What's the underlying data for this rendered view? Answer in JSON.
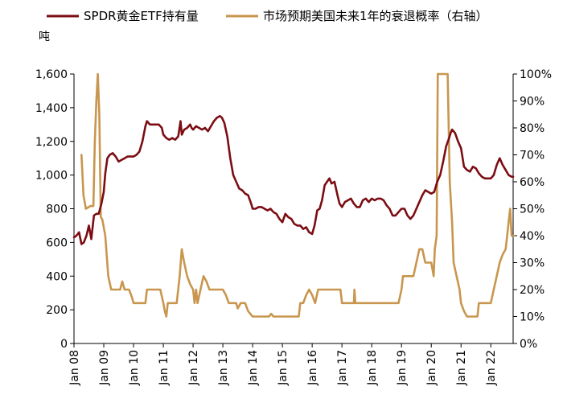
{
  "chart_data": {
    "type": "line",
    "left_unit": "吨",
    "legend": [
      {
        "name": "SPDR黄金ETF持有量",
        "color": "#7B0D13"
      },
      {
        "name": "市场预期美国未来1年的衰退概率（右轴）",
        "color": "#C8964E"
      }
    ],
    "x_ticks": [
      "Jan 08",
      "Jan 09",
      "Jan 10",
      "Jan 11",
      "Jan 12",
      "Jan 13",
      "Jan 14",
      "Jan 15",
      "Jan 16",
      "Jan 17",
      "Jan 18",
      "Jan 19",
      "Jan 20",
      "Jan 21",
      "Jan 22"
    ],
    "y_left": {
      "min": 0,
      "max": 1600,
      "ticks": [
        "0",
        "200",
        "400",
        "600",
        "800",
        "1,000",
        "1,200",
        "1,400",
        "1,600"
      ]
    },
    "y_right": {
      "min": 0,
      "max": 100,
      "ticks": [
        "0%",
        "10%",
        "20%",
        "30%",
        "40%",
        "50%",
        "60%",
        "70%",
        "80%",
        "90%",
        "100%"
      ]
    },
    "x_range": [
      2008.0,
      2022.75
    ],
    "series": [
      {
        "name": "SPDR黄金ETF持有量",
        "axis": "left",
        "color": "#7B0D13",
        "points": [
          [
            2008.0,
            630
          ],
          [
            2008.08,
            640
          ],
          [
            2008.17,
            660
          ],
          [
            2008.25,
            590
          ],
          [
            2008.33,
            600
          ],
          [
            2008.42,
            640
          ],
          [
            2008.5,
            700
          ],
          [
            2008.58,
            620
          ],
          [
            2008.67,
            760
          ],
          [
            2008.75,
            770
          ],
          [
            2008.83,
            770
          ],
          [
            2008.92,
            830
          ],
          [
            2009.0,
            900
          ],
          [
            2009.05,
            1010
          ],
          [
            2009.12,
            1100
          ],
          [
            2009.2,
            1120
          ],
          [
            2009.3,
            1130
          ],
          [
            2009.4,
            1110
          ],
          [
            2009.5,
            1080
          ],
          [
            2009.6,
            1090
          ],
          [
            2009.7,
            1100
          ],
          [
            2009.8,
            1110
          ],
          [
            2009.9,
            1110
          ],
          [
            2010.0,
            1110
          ],
          [
            2010.1,
            1120
          ],
          [
            2010.2,
            1140
          ],
          [
            2010.3,
            1200
          ],
          [
            2010.4,
            1290
          ],
          [
            2010.45,
            1320
          ],
          [
            2010.55,
            1300
          ],
          [
            2010.7,
            1300
          ],
          [
            2010.85,
            1300
          ],
          [
            2010.95,
            1280
          ],
          [
            2011.0,
            1240
          ],
          [
            2011.1,
            1220
          ],
          [
            2011.2,
            1210
          ],
          [
            2011.3,
            1220
          ],
          [
            2011.4,
            1210
          ],
          [
            2011.5,
            1230
          ],
          [
            2011.58,
            1320
          ],
          [
            2011.62,
            1240
          ],
          [
            2011.7,
            1270
          ],
          [
            2011.8,
            1280
          ],
          [
            2011.9,
            1300
          ],
          [
            2011.95,
            1280
          ],
          [
            2012.0,
            1270
          ],
          [
            2012.1,
            1290
          ],
          [
            2012.2,
            1280
          ],
          [
            2012.3,
            1270
          ],
          [
            2012.4,
            1280
          ],
          [
            2012.5,
            1260
          ],
          [
            2012.6,
            1290
          ],
          [
            2012.7,
            1320
          ],
          [
            2012.8,
            1340
          ],
          [
            2012.9,
            1350
          ],
          [
            2012.97,
            1340
          ],
          [
            2013.05,
            1310
          ],
          [
            2013.15,
            1230
          ],
          [
            2013.25,
            1100
          ],
          [
            2013.35,
            1000
          ],
          [
            2013.45,
            960
          ],
          [
            2013.55,
            920
          ],
          [
            2013.65,
            910
          ],
          [
            2013.75,
            890
          ],
          [
            2013.85,
            880
          ],
          [
            2013.95,
            830
          ],
          [
            2014.0,
            800
          ],
          [
            2014.1,
            800
          ],
          [
            2014.2,
            810
          ],
          [
            2014.3,
            810
          ],
          [
            2014.4,
            800
          ],
          [
            2014.5,
            790
          ],
          [
            2014.6,
            800
          ],
          [
            2014.7,
            780
          ],
          [
            2014.8,
            770
          ],
          [
            2014.9,
            740
          ],
          [
            2015.0,
            720
          ],
          [
            2015.1,
            770
          ],
          [
            2015.2,
            750
          ],
          [
            2015.3,
            740
          ],
          [
            2015.4,
            710
          ],
          [
            2015.5,
            700
          ],
          [
            2015.6,
            700
          ],
          [
            2015.7,
            680
          ],
          [
            2015.8,
            690
          ],
          [
            2015.9,
            660
          ],
          [
            2016.0,
            650
          ],
          [
            2016.08,
            700
          ],
          [
            2016.17,
            790
          ],
          [
            2016.25,
            800
          ],
          [
            2016.33,
            850
          ],
          [
            2016.42,
            940
          ],
          [
            2016.5,
            960
          ],
          [
            2016.58,
            980
          ],
          [
            2016.65,
            950
          ],
          [
            2016.75,
            960
          ],
          [
            2016.85,
            880
          ],
          [
            2016.92,
            830
          ],
          [
            2017.0,
            810
          ],
          [
            2017.1,
            840
          ],
          [
            2017.2,
            850
          ],
          [
            2017.3,
            860
          ],
          [
            2017.4,
            830
          ],
          [
            2017.5,
            810
          ],
          [
            2017.6,
            810
          ],
          [
            2017.7,
            850
          ],
          [
            2017.8,
            860
          ],
          [
            2017.9,
            840
          ],
          [
            2018.0,
            860
          ],
          [
            2018.1,
            850
          ],
          [
            2018.2,
            860
          ],
          [
            2018.3,
            860
          ],
          [
            2018.4,
            850
          ],
          [
            2018.5,
            820
          ],
          [
            2018.6,
            800
          ],
          [
            2018.7,
            760
          ],
          [
            2018.8,
            760
          ],
          [
            2018.9,
            780
          ],
          [
            2019.0,
            800
          ],
          [
            2019.1,
            800
          ],
          [
            2019.2,
            760
          ],
          [
            2019.3,
            740
          ],
          [
            2019.4,
            760
          ],
          [
            2019.5,
            800
          ],
          [
            2019.6,
            840
          ],
          [
            2019.7,
            880
          ],
          [
            2019.8,
            910
          ],
          [
            2019.9,
            900
          ],
          [
            2020.0,
            890
          ],
          [
            2020.1,
            900
          ],
          [
            2020.2,
            960
          ],
          [
            2020.3,
            1000
          ],
          [
            2020.4,
            1080
          ],
          [
            2020.5,
            1170
          ],
          [
            2020.6,
            1220
          ],
          [
            2020.65,
            1250
          ],
          [
            2020.7,
            1270
          ],
          [
            2020.8,
            1250
          ],
          [
            2020.9,
            1200
          ],
          [
            2021.0,
            1160
          ],
          [
            2021.1,
            1050
          ],
          [
            2021.2,
            1030
          ],
          [
            2021.3,
            1020
          ],
          [
            2021.4,
            1050
          ],
          [
            2021.5,
            1040
          ],
          [
            2021.6,
            1010
          ],
          [
            2021.7,
            990
          ],
          [
            2021.8,
            980
          ],
          [
            2021.9,
            980
          ],
          [
            2022.0,
            980
          ],
          [
            2022.1,
            1000
          ],
          [
            2022.2,
            1060
          ],
          [
            2022.3,
            1100
          ],
          [
            2022.4,
            1060
          ],
          [
            2022.5,
            1030
          ],
          [
            2022.6,
            1000
          ],
          [
            2022.7,
            990
          ],
          [
            2022.75,
            990
          ]
        ]
      },
      {
        "name": "市场预期美国未来1年的衰退概率（右轴）",
        "axis": "right",
        "color": "#C8964E",
        "points": [
          [
            2008.25,
            70
          ],
          [
            2008.32,
            55
          ],
          [
            2008.4,
            50
          ],
          [
            2008.55,
            51
          ],
          [
            2008.65,
            51
          ],
          [
            2008.7,
            75
          ],
          [
            2008.75,
            90
          ],
          [
            2008.8,
            100
          ],
          [
            2008.85,
            85
          ],
          [
            2008.9,
            47
          ],
          [
            2008.95,
            46
          ],
          [
            2009.05,
            40
          ],
          [
            2009.15,
            25
          ],
          [
            2009.25,
            20
          ],
          [
            2009.4,
            20
          ],
          [
            2009.55,
            20
          ],
          [
            2009.62,
            23
          ],
          [
            2009.7,
            20
          ],
          [
            2009.85,
            20
          ],
          [
            2009.95,
            17
          ],
          [
            2010.0,
            15
          ],
          [
            2010.2,
            15
          ],
          [
            2010.4,
            15
          ],
          [
            2010.45,
            20
          ],
          [
            2010.6,
            20
          ],
          [
            2010.75,
            20
          ],
          [
            2010.9,
            20
          ],
          [
            2011.0,
            15
          ],
          [
            2011.05,
            12
          ],
          [
            2011.1,
            10
          ],
          [
            2011.15,
            15
          ],
          [
            2011.25,
            15
          ],
          [
            2011.35,
            15
          ],
          [
            2011.45,
            15
          ],
          [
            2011.55,
            25
          ],
          [
            2011.62,
            35
          ],
          [
            2011.7,
            30
          ],
          [
            2011.8,
            25
          ],
          [
            2011.9,
            22
          ],
          [
            2012.0,
            20
          ],
          [
            2012.05,
            15
          ],
          [
            2012.1,
            20
          ],
          [
            2012.15,
            15
          ],
          [
            2012.25,
            20
          ],
          [
            2012.35,
            25
          ],
          [
            2012.45,
            23
          ],
          [
            2012.55,
            20
          ],
          [
            2012.7,
            20
          ],
          [
            2012.85,
            20
          ],
          [
            2012.95,
            20
          ],
          [
            2013.0,
            20
          ],
          [
            2013.1,
            18
          ],
          [
            2013.2,
            15
          ],
          [
            2013.35,
            15
          ],
          [
            2013.45,
            15
          ],
          [
            2013.5,
            13
          ],
          [
            2013.6,
            15
          ],
          [
            2013.75,
            15
          ],
          [
            2013.85,
            12
          ],
          [
            2014.0,
            10
          ],
          [
            2014.2,
            10
          ],
          [
            2014.4,
            10
          ],
          [
            2014.55,
            10
          ],
          [
            2014.62,
            11
          ],
          [
            2014.7,
            10
          ],
          [
            2014.85,
            10
          ],
          [
            2015.0,
            10
          ],
          [
            2015.2,
            10
          ],
          [
            2015.4,
            10
          ],
          [
            2015.55,
            10
          ],
          [
            2015.6,
            15
          ],
          [
            2015.7,
            15
          ],
          [
            2015.8,
            18
          ],
          [
            2015.9,
            20
          ],
          [
            2016.0,
            18
          ],
          [
            2016.1,
            15
          ],
          [
            2016.2,
            20
          ],
          [
            2016.3,
            20
          ],
          [
            2016.4,
            20
          ],
          [
            2016.5,
            20
          ],
          [
            2016.6,
            20
          ],
          [
            2016.7,
            20
          ],
          [
            2016.8,
            20
          ],
          [
            2016.9,
            20
          ],
          [
            2016.95,
            20
          ],
          [
            2017.0,
            15
          ],
          [
            2017.2,
            15
          ],
          [
            2017.4,
            15
          ],
          [
            2017.42,
            20
          ],
          [
            2017.45,
            15
          ],
          [
            2017.6,
            15
          ],
          [
            2017.8,
            15
          ],
          [
            2017.9,
            15
          ],
          [
            2018.0,
            15
          ],
          [
            2018.2,
            15
          ],
          [
            2018.4,
            15
          ],
          [
            2018.6,
            15
          ],
          [
            2018.8,
            15
          ],
          [
            2018.9,
            15
          ],
          [
            2019.0,
            20
          ],
          [
            2019.05,
            25
          ],
          [
            2019.2,
            25
          ],
          [
            2019.4,
            25
          ],
          [
            2019.5,
            30
          ],
          [
            2019.6,
            35
          ],
          [
            2019.7,
            35
          ],
          [
            2019.8,
            30
          ],
          [
            2019.9,
            30
          ],
          [
            2020.0,
            30
          ],
          [
            2020.08,
            25
          ],
          [
            2020.12,
            35
          ],
          [
            2020.18,
            40
          ],
          [
            2020.22,
            100
          ],
          [
            2020.3,
            100
          ],
          [
            2020.45,
            100
          ],
          [
            2020.55,
            100
          ],
          [
            2020.62,
            60
          ],
          [
            2020.7,
            45
          ],
          [
            2020.75,
            30
          ],
          [
            2020.85,
            25
          ],
          [
            2020.95,
            20
          ],
          [
            2021.0,
            15
          ],
          [
            2021.1,
            12
          ],
          [
            2021.2,
            10
          ],
          [
            2021.4,
            10
          ],
          [
            2021.55,
            10
          ],
          [
            2021.6,
            15
          ],
          [
            2021.75,
            15
          ],
          [
            2021.85,
            15
          ],
          [
            2022.0,
            15
          ],
          [
            2022.1,
            20
          ],
          [
            2022.2,
            25
          ],
          [
            2022.3,
            30
          ],
          [
            2022.4,
            33
          ],
          [
            2022.5,
            35
          ],
          [
            2022.55,
            40
          ],
          [
            2022.6,
            45
          ],
          [
            2022.65,
            50
          ],
          [
            2022.7,
            40
          ],
          [
            2022.75,
            40
          ]
        ]
      }
    ]
  }
}
